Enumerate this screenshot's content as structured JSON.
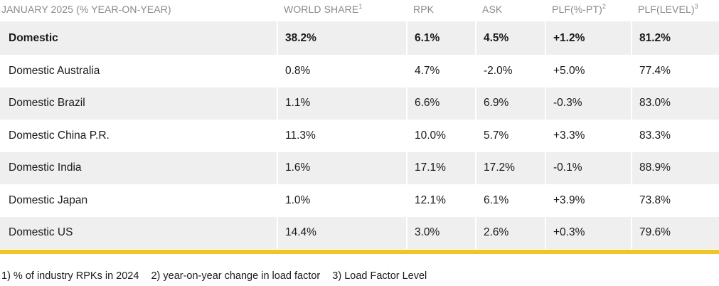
{
  "table": {
    "headers": [
      {
        "label": "JANUARY 2025 (% YEAR-ON-YEAR)",
        "sup": ""
      },
      {
        "label": "WORLD SHARE",
        "sup": "1"
      },
      {
        "label": "RPK",
        "sup": ""
      },
      {
        "label": "ASK",
        "sup": ""
      },
      {
        "label": "PLF(%-PT)",
        "sup": "2"
      },
      {
        "label": "PLF(LEVEL)",
        "sup": "3"
      }
    ],
    "rows": [
      [
        "Domestic",
        "38.2%",
        "6.1%",
        "4.5%",
        "+1.2%",
        "81.2%"
      ],
      [
        "Domestic Australia",
        "0.8%",
        "4.7%",
        "-2.0%",
        "+5.0%",
        "77.4%"
      ],
      [
        "Domestic Brazil",
        "1.1%",
        "6.6%",
        "6.9%",
        "-0.3%",
        "83.0%"
      ],
      [
        "Domestic China P.R.",
        "11.3%",
        "10.0%",
        "5.7%",
        "+3.3%",
        "83.3%"
      ],
      [
        "Domestic India",
        "1.6%",
        "17.1%",
        "17.2%",
        "-0.1%",
        "88.9%"
      ],
      [
        "Domestic Japan",
        "1.0%",
        "12.1%",
        "6.1%",
        "+3.9%",
        "73.8%"
      ],
      [
        "Domestic US",
        "14.4%",
        "3.0%",
        "2.6%",
        "+0.3%",
        "79.6%"
      ]
    ]
  },
  "footnotes": [
    "1) % of industry RPKs in 2024",
    "2) year-on-year change in load factor",
    "3) Load Factor Level"
  ],
  "colors": {
    "accent_bar": "#f2c527",
    "row_shade": "#efefef",
    "header_text": "#8a8a8a"
  }
}
